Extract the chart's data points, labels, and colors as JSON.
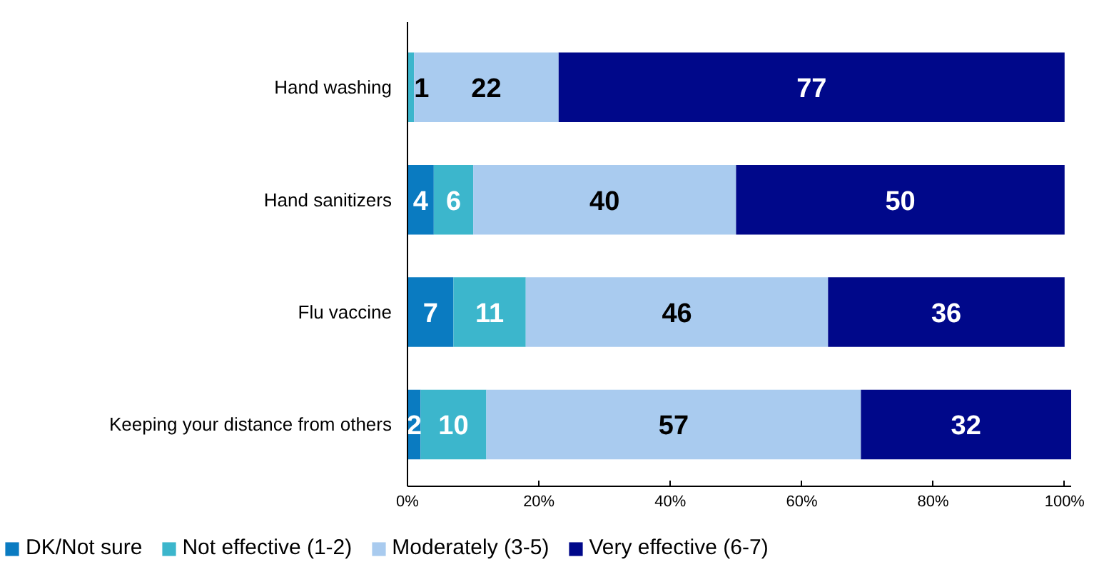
{
  "chart_data": {
    "type": "bar",
    "orientation": "horizontal",
    "stacked": true,
    "categories": [
      "Hand washing",
      "Hand sanitizers",
      "Flu vaccine",
      "Keeping your distance from others"
    ],
    "series": [
      {
        "name": "DK/Not sure",
        "color": "#0a7bc1",
        "values": [
          0,
          4,
          7,
          2
        ],
        "value_labels": [
          null,
          "4",
          "7",
          "2"
        ]
      },
      {
        "name": "Not effective (1-2)",
        "color": "#3cb6cc",
        "values": [
          1,
          6,
          11,
          10
        ],
        "value_labels": [
          "1",
          "6",
          "11",
          "10"
        ]
      },
      {
        "name": "Moderately (3-5)",
        "color": "#a9cbef",
        "values": [
          22,
          40,
          46,
          57
        ],
        "value_labels": [
          "22",
          "40",
          "46",
          "57"
        ]
      },
      {
        "name": "Very effective (6-7)",
        "color": "#00088a",
        "values": [
          77,
          50,
          36,
          32
        ],
        "value_labels": [
          "77",
          "50",
          "36",
          "32"
        ]
      }
    ],
    "xlim": [
      0,
      101
    ],
    "xticks": [
      {
        "value": 0,
        "label": "0%"
      },
      {
        "value": 20,
        "label": "20%"
      },
      {
        "value": 40,
        "label": "40%"
      },
      {
        "value": 60,
        "label": "60%"
      },
      {
        "value": 80,
        "label": "80%"
      },
      {
        "value": 100,
        "label": "100%"
      }
    ],
    "grid": false,
    "legend": "bottom"
  }
}
